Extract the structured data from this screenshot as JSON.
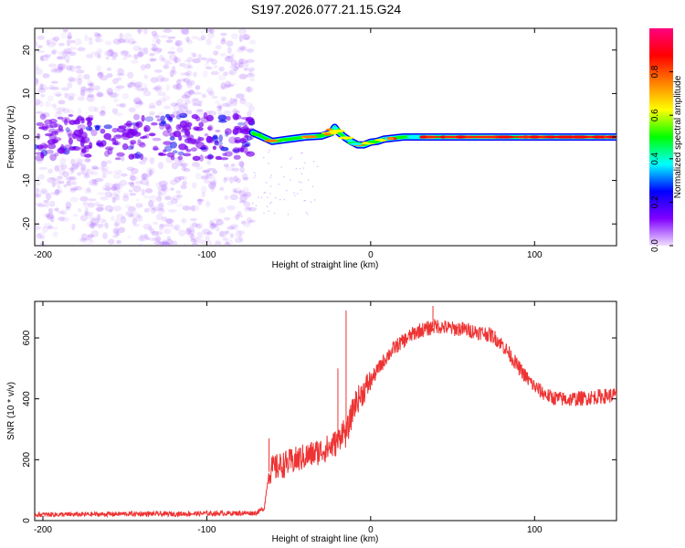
{
  "title": "S197.2026.077.21.15.G24",
  "chart_data": [
    {
      "type": "heatmap",
      "name": "spectrogram",
      "xlabel": "Height of straight line (km)",
      "ylabel": "Frequency (Hz)",
      "xlim": [
        -205,
        150
      ],
      "ylim": [
        -25,
        25
      ],
      "xticks": [
        -200,
        -100,
        0,
        100
      ],
      "xtick_labels": [
        "-200",
        "-100",
        "0",
        "100"
      ],
      "yticks": [
        -20,
        -10,
        0,
        10,
        20
      ],
      "ytick_labels": [
        "-20",
        "-10",
        "0",
        "10",
        "20"
      ],
      "trace_path": {
        "x": [
          -72,
          -66,
          -60,
          -50,
          -40,
          -30,
          -24,
          -22,
          -20,
          -16,
          -12,
          -8,
          -4,
          0,
          4,
          8,
          20,
          40,
          60,
          80,
          100,
          120,
          150
        ],
        "y": [
          1.0,
          0.0,
          -1.0,
          -0.5,
          0.0,
          0.2,
          1.0,
          2.2,
          1.2,
          0.0,
          -1.0,
          -1.8,
          -1.8,
          -1.2,
          -1.0,
          -0.5,
          0.0,
          0.0,
          0.0,
          0.0,
          0.0,
          0.0,
          0.0
        ]
      },
      "colorbar": {
        "label": "Normalized spectral amplitude",
        "range": [
          0,
          1
        ],
        "ticks": [
          0.0,
          0.2,
          0.4,
          0.6,
          0.8
        ],
        "tick_labels": [
          "0.0",
          "0.2",
          "0.4",
          "0.6",
          "0.8"
        ],
        "colormap": [
          "#f0e0ff",
          "#8000ff",
          "#0000ff",
          "#00ffff",
          "#00ff00",
          "#ffff00",
          "#ff8000",
          "#ff0000",
          "#ff0080"
        ]
      }
    },
    {
      "type": "line",
      "name": "snr",
      "xlabel": "Height of straight line (km)",
      "ylabel": "SNR (10 * v/v)",
      "xlim": [
        -205,
        150
      ],
      "ylim": [
        0,
        720
      ],
      "xticks": [
        -200,
        -100,
        0,
        100
      ],
      "xtick_labels": [
        "-200",
        "-100",
        "0",
        "100"
      ],
      "yticks": [
        0,
        200,
        400,
        600
      ],
      "ytick_labels": [
        "0",
        "200",
        "400",
        "600"
      ],
      "series": [
        {
          "name": "SNR",
          "color": "#ee3333",
          "x": [
            -205,
            -180,
            -150,
            -120,
            -90,
            -70,
            -65,
            -62,
            -60,
            -55,
            -50,
            -45,
            -40,
            -35,
            -30,
            -25,
            -20,
            -17,
            -15,
            -13,
            -10,
            -5,
            0,
            5,
            10,
            15,
            20,
            25,
            30,
            35,
            40,
            45,
            50,
            55,
            60,
            65,
            70,
            75,
            80,
            85,
            90,
            95,
            100,
            105,
            110,
            115,
            120,
            125,
            130,
            135,
            140,
            145,
            150
          ],
          "y": [
            20,
            20,
            22,
            22,
            24,
            25,
            40,
            160,
            170,
            180,
            190,
            200,
            210,
            220,
            230,
            240,
            260,
            300,
            280,
            320,
            380,
            420,
            460,
            500,
            540,
            570,
            590,
            610,
            625,
            630,
            640,
            635,
            630,
            630,
            625,
            620,
            615,
            605,
            580,
            545,
            505,
            470,
            440,
            420,
            405,
            400,
            398,
            400,
            402,
            405,
            408,
            410,
            412
          ],
          "spikes": [
            {
              "x": -15,
              "y": 690
            },
            {
              "x": -20,
              "y": 500
            },
            {
              "x": -62,
              "y": 270
            },
            {
              "x": 38,
              "y": 705
            }
          ]
        }
      ]
    }
  ]
}
